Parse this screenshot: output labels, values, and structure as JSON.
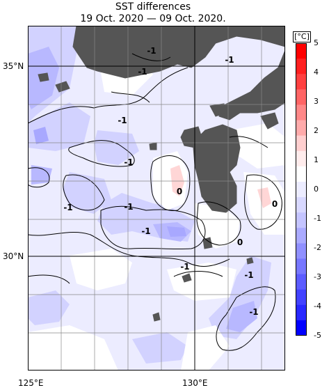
{
  "header": {
    "title": "SST differences",
    "subtitle": "19 Oct. 2020 — 09 Oct. 2020."
  },
  "map": {
    "lon_labels": [
      "125°E",
      "130°E"
    ],
    "lat_labels": [
      "35°N",
      "30°N"
    ],
    "contour_labels": [
      "-1",
      "-1",
      "-1",
      "-1",
      "-1",
      "-1",
      "-1",
      "-1",
      "-1",
      "0",
      "0",
      "0",
      "-1",
      "-1"
    ]
  },
  "colorbar": {
    "unit": "[°C]",
    "labels": [
      "5",
      "4",
      "3",
      "2",
      "1",
      "0",
      "-1",
      "-2",
      "-3",
      "-4",
      "-5"
    ],
    "colors": [
      "#ff0000",
      "#ff2020",
      "#ff4040",
      "#ff6565",
      "#ff8888",
      "#ffabab",
      "#ffcfcf",
      "#ffecec",
      "#ffffff",
      "#ececff",
      "#d8d8ff",
      "#c4c4ff",
      "#aaaaff",
      "#9090ff",
      "#7777ff",
      "#5c5cff",
      "#4242ff",
      "#2828ff",
      "#0000ff"
    ]
  }
}
